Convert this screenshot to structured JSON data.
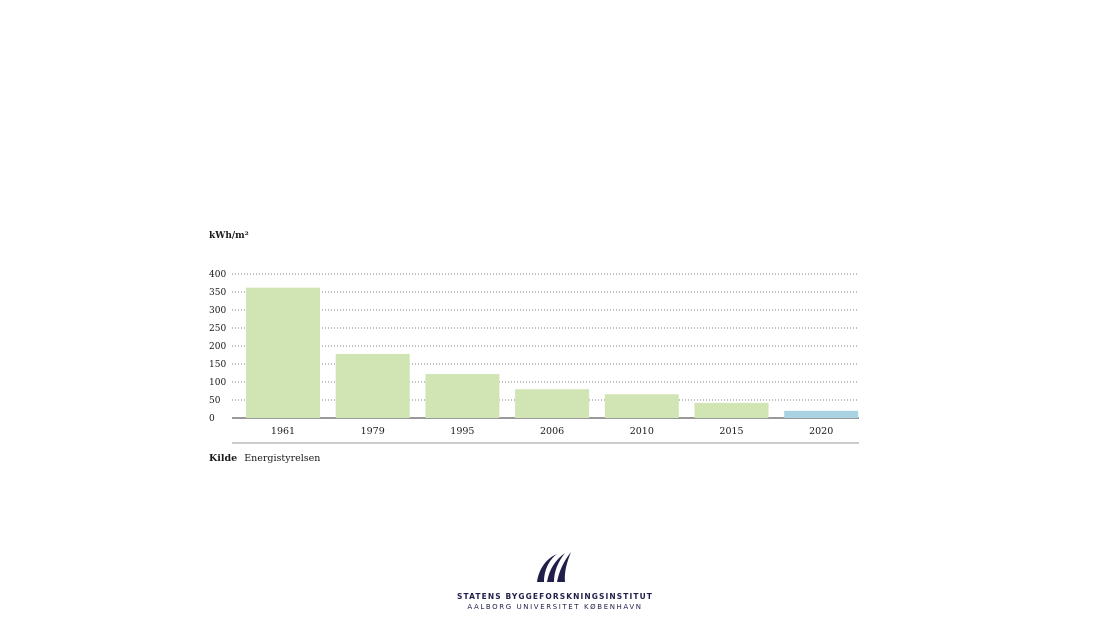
{
  "chart_data": {
    "type": "bar",
    "ylabel": "kWh/m²",
    "categories": [
      "1961",
      "1979",
      "1995",
      "2006",
      "2010",
      "2015",
      "2020"
    ],
    "values": [
      362,
      178,
      122,
      80,
      66,
      42,
      20
    ],
    "bar_colors": [
      "#d0e5b3",
      "#d0e5b3",
      "#d0e5b3",
      "#d0e5b3",
      "#d0e5b3",
      "#d0e5b3",
      "#a9d2e3"
    ],
    "yticks": [
      0,
      50,
      100,
      150,
      200,
      250,
      300,
      350,
      400
    ],
    "ylim": [
      0,
      400
    ],
    "grid": true
  },
  "source": {
    "label": "Kilde",
    "text": "Energistyrelsen"
  },
  "logo": {
    "line1": "STATENS BYGGEFORSKNINGSINSTITUT",
    "line2": "AALBORG UNIVERSITET KØBENHAVN",
    "color": "#1f1f4a"
  }
}
